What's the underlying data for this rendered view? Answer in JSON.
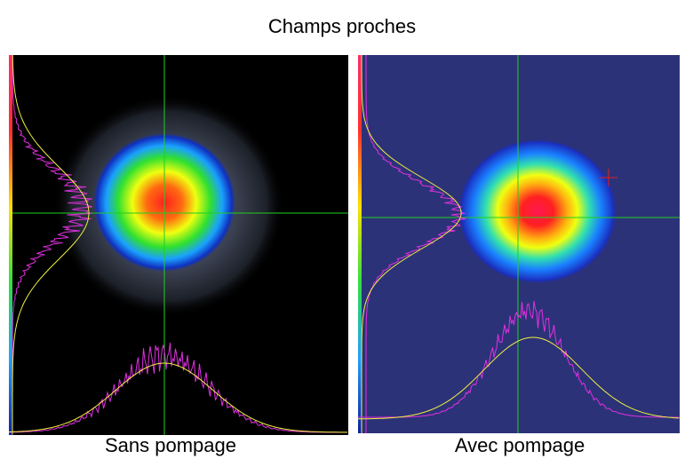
{
  "header": {
    "title": "Champs proches"
  },
  "panels": [
    {
      "label": "Sans pompage"
    },
    {
      "label": "Avec pompage"
    }
  ]
}
